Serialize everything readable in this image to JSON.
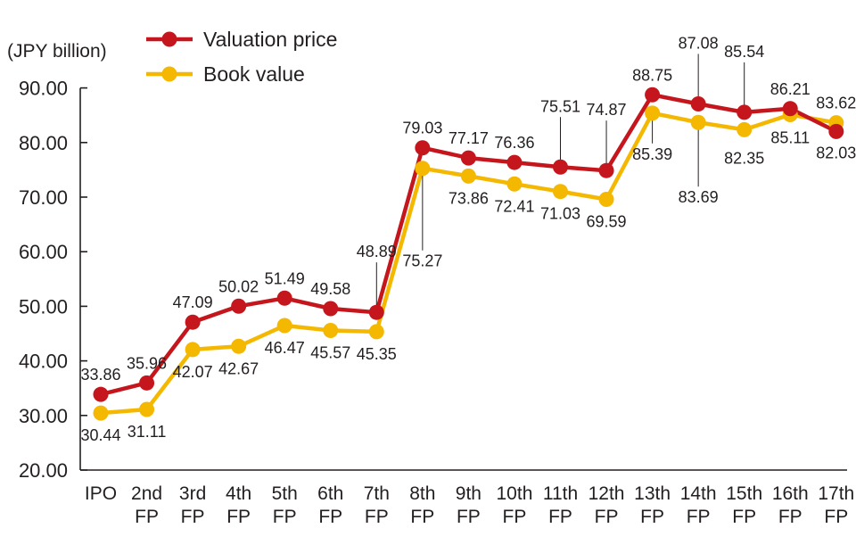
{
  "chart_data": {
    "type": "line",
    "title": "",
    "xlabel": "",
    "ylabel": "(JPY billion)",
    "ylim": [
      20,
      90
    ],
    "yticks": [
      "20.00",
      "30.00",
      "40.00",
      "50.00",
      "60.00",
      "70.00",
      "80.00",
      "90.00"
    ],
    "grid": false,
    "legend_position": "top-left",
    "categories": [
      [
        "IPO"
      ],
      [
        "2nd",
        "FP"
      ],
      [
        "3rd",
        "FP"
      ],
      [
        "4th",
        "FP"
      ],
      [
        "5th",
        "FP"
      ],
      [
        "6th",
        "FP"
      ],
      [
        "7th",
        "FP"
      ],
      [
        "8th",
        "FP"
      ],
      [
        "9th",
        "FP"
      ],
      [
        "10th",
        "FP"
      ],
      [
        "11th",
        "FP"
      ],
      [
        "12th",
        "FP"
      ],
      [
        "13th",
        "FP"
      ],
      [
        "14th",
        "FP"
      ],
      [
        "15th",
        "FP"
      ],
      [
        "16th",
        "FP"
      ],
      [
        "17th",
        "FP"
      ]
    ],
    "series": [
      {
        "name": "Valuation price",
        "color": "#c4161c",
        "values": [
          33.86,
          35.96,
          47.09,
          50.02,
          51.49,
          49.58,
          48.89,
          79.03,
          77.17,
          76.36,
          75.51,
          74.87,
          88.75,
          87.08,
          85.54,
          86.21,
          82.03
        ],
        "labels": [
          "33.86",
          "35.96",
          "47.09",
          "50.02",
          "51.49",
          "49.58",
          "48.89",
          "79.03",
          "77.17",
          "76.36",
          "75.51",
          "74.87",
          "88.75",
          "87.08",
          "85.54",
          "86.21",
          "82.03"
        ]
      },
      {
        "name": "Book value",
        "color": "#f5b800",
        "values": [
          30.44,
          31.11,
          42.07,
          42.67,
          46.47,
          45.57,
          45.35,
          75.27,
          73.86,
          72.41,
          71.03,
          69.59,
          85.39,
          83.69,
          82.35,
          85.11,
          83.62
        ],
        "labels": [
          "30.44",
          "31.11",
          "42.07",
          "42.67",
          "46.47",
          "45.57",
          "45.35",
          "75.27",
          "73.86",
          "72.41",
          "71.03",
          "69.59",
          "85.39",
          "83.69",
          "82.35",
          "85.11",
          "83.62"
        ]
      }
    ]
  }
}
